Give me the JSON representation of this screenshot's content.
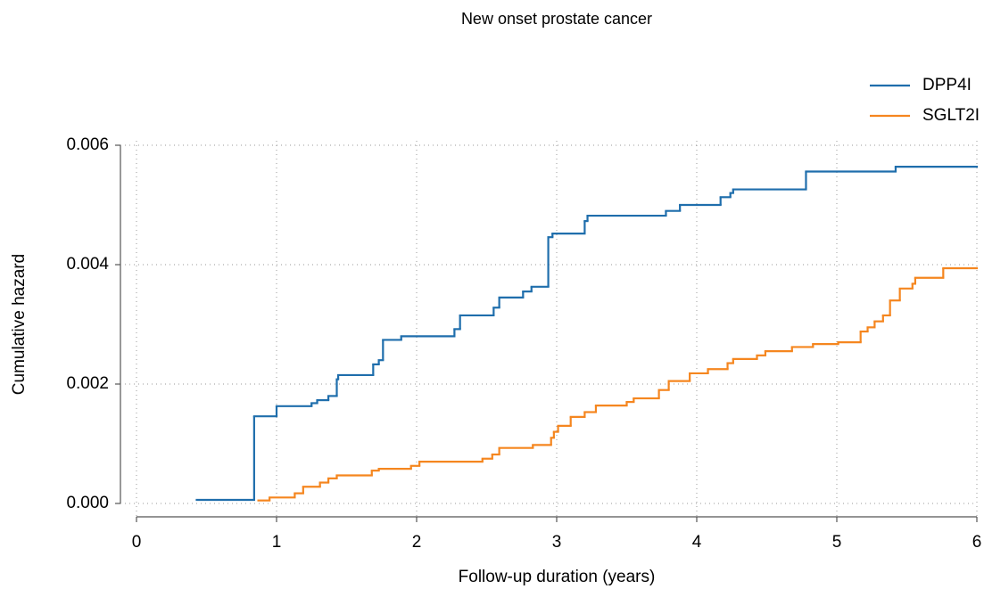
{
  "chart_data": {
    "type": "step",
    "drawstyle": "steps-post",
    "title": "New onset prostate cancer",
    "xlabel": "Follow-up duration (years)",
    "ylabel": "Cumulative hazard",
    "xlim": [
      0,
      6
    ],
    "xticks": [
      0,
      1,
      2,
      3,
      4,
      5,
      6
    ],
    "ylim": [
      0,
      0.006
    ],
    "yticks": [
      {
        "value": 0,
        "label": "0.000"
      },
      0.002,
      0.004,
      0.006
    ],
    "grid": true,
    "legend": "upper right",
    "series": [
      {
        "name": "DPP4I",
        "color": "#1f6eac",
        "x": [
          0.43,
          0.84,
          1.0,
          1.25,
          1.29,
          1.37,
          1.43,
          1.44,
          1.69,
          1.73,
          1.76,
          1.89,
          2.27,
          2.31,
          2.55,
          2.59,
          2.76,
          2.82,
          2.94,
          2.97,
          3.2,
          3.22,
          3.78,
          3.88,
          4.17,
          4.24,
          4.26,
          4.78,
          5.42,
          6.0
        ],
        "values": [
          6e-05,
          0.00146,
          0.00163,
          0.00168,
          0.00173,
          0.0018,
          0.00208,
          0.00215,
          0.00233,
          0.0024,
          0.00274,
          0.0028,
          0.00292,
          0.00315,
          0.00328,
          0.00345,
          0.00355,
          0.00363,
          0.00446,
          0.00452,
          0.00473,
          0.00482,
          0.0049,
          0.005,
          0.00513,
          0.0052,
          0.00526,
          0.00556,
          0.00564,
          0.00564
        ]
      },
      {
        "name": "SGLT2I",
        "color": "#f5861f",
        "x": [
          0.87,
          0.95,
          1.13,
          1.19,
          1.31,
          1.37,
          1.43,
          1.68,
          1.73,
          1.96,
          2.02,
          2.47,
          2.54,
          2.59,
          2.83,
          2.96,
          2.98,
          3.01,
          3.1,
          3.2,
          3.28,
          3.5,
          3.55,
          3.73,
          3.8,
          3.95,
          4.08,
          4.22,
          4.26,
          4.43,
          4.49,
          4.68,
          4.83,
          5.01,
          5.17,
          5.22,
          5.27,
          5.33,
          5.38,
          5.45,
          5.54,
          5.56,
          5.76,
          6.0
        ],
        "values": [
          5e-05,
          0.0001,
          0.00017,
          0.00028,
          0.00035,
          0.00042,
          0.00047,
          0.00055,
          0.00058,
          0.00063,
          0.0007,
          0.00075,
          0.00082,
          0.00093,
          0.00098,
          0.0011,
          0.0012,
          0.0013,
          0.00145,
          0.00153,
          0.00164,
          0.0017,
          0.00176,
          0.0019,
          0.00205,
          0.00218,
          0.00225,
          0.00235,
          0.00242,
          0.00248,
          0.00255,
          0.00262,
          0.00267,
          0.0027,
          0.00288,
          0.00295,
          0.00305,
          0.00315,
          0.0034,
          0.0036,
          0.00368,
          0.00378,
          0.00394,
          0.00394
        ]
      }
    ]
  }
}
